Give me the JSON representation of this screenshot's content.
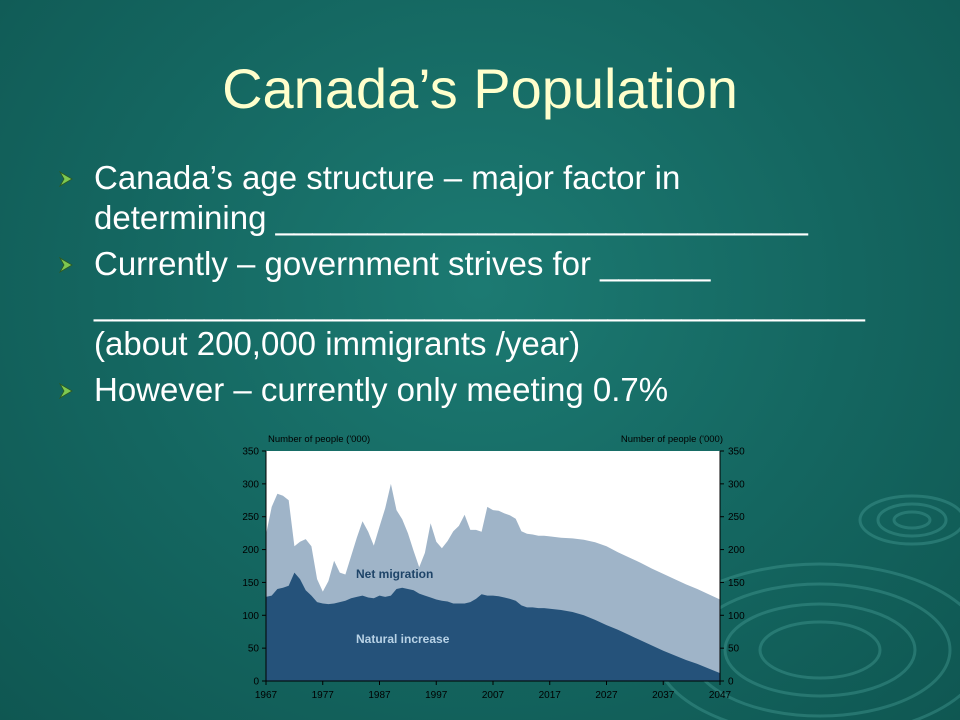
{
  "slide": {
    "title": "Canada’s Population",
    "bullets": [
      {
        "lines": [
          "Canada’s age structure – major factor in",
          "determining _____________________________"
        ]
      },
      {
        "lines": [
          "Currently – government strives for ______",
          "__________________________________________",
          "(about 200,000 immigrants /year)"
        ]
      },
      {
        "lines": [
          "However – currently only meeting 0.7%"
        ]
      }
    ]
  },
  "colors": {
    "background": "#146660",
    "title": "#ffffcc",
    "bullet_text": "#ffffff",
    "bullet_arrow": "#7ec850",
    "natural_increase": "#25527a",
    "net_migration": "#9fb4c8"
  },
  "chart_data": {
    "type": "area",
    "y_axis_label_left": "Number of people ('000)",
    "y_axis_label_right": "Number of people ('000)",
    "ylim": [
      0,
      350
    ],
    "y_ticks": [
      0,
      50,
      100,
      150,
      200,
      250,
      300,
      350
    ],
    "xlim": [
      1967,
      2047
    ],
    "x_ticks": [
      "1967",
      "1977",
      "1987",
      "1997",
      "2007",
      "2017",
      "2027",
      "2037",
      "2047"
    ],
    "stacked": true,
    "series": [
      {
        "name": "Natural increase",
        "points": [
          [
            1967,
            128
          ],
          [
            1968,
            130
          ],
          [
            1969,
            140
          ],
          [
            1970,
            142
          ],
          [
            1971,
            145
          ],
          [
            1972,
            165
          ],
          [
            1973,
            155
          ],
          [
            1974,
            138
          ],
          [
            1975,
            130
          ],
          [
            1976,
            120
          ],
          [
            1977,
            118
          ],
          [
            1978,
            117
          ],
          [
            1979,
            118
          ],
          [
            1980,
            120
          ],
          [
            1981,
            122
          ],
          [
            1982,
            126
          ],
          [
            1983,
            128
          ],
          [
            1984,
            130
          ],
          [
            1985,
            127
          ],
          [
            1986,
            126
          ],
          [
            1987,
            130
          ],
          [
            1988,
            128
          ],
          [
            1989,
            130
          ],
          [
            1990,
            140
          ],
          [
            1991,
            142
          ],
          [
            1992,
            140
          ],
          [
            1993,
            138
          ],
          [
            1994,
            133
          ],
          [
            1995,
            130
          ],
          [
            1996,
            127
          ],
          [
            1997,
            124
          ],
          [
            1998,
            122
          ],
          [
            1999,
            121
          ],
          [
            2000,
            118
          ],
          [
            2001,
            118
          ],
          [
            2002,
            118
          ],
          [
            2003,
            120
          ],
          [
            2004,
            125
          ],
          [
            2005,
            132
          ],
          [
            2006,
            130
          ],
          [
            2007,
            130
          ],
          [
            2008,
            129
          ],
          [
            2009,
            127
          ],
          [
            2010,
            125
          ],
          [
            2011,
            122
          ],
          [
            2012,
            115
          ],
          [
            2013,
            112
          ],
          [
            2014,
            112
          ],
          [
            2015,
            111
          ],
          [
            2016,
            111
          ],
          [
            2017,
            110
          ],
          [
            2019,
            108
          ],
          [
            2021,
            105
          ],
          [
            2023,
            100
          ],
          [
            2025,
            93
          ],
          [
            2027,
            85
          ],
          [
            2029,
            78
          ],
          [
            2031,
            70
          ],
          [
            2033,
            62
          ],
          [
            2035,
            54
          ],
          [
            2037,
            46
          ],
          [
            2039,
            39
          ],
          [
            2041,
            32
          ],
          [
            2043,
            26
          ],
          [
            2045,
            19
          ],
          [
            2047,
            12
          ]
        ]
      },
      {
        "name": "Net migration",
        "points": [
          [
            1967,
            95
          ],
          [
            1968,
            135
          ],
          [
            1969,
            145
          ],
          [
            1970,
            140
          ],
          [
            1971,
            130
          ],
          [
            1972,
            40
          ],
          [
            1973,
            57
          ],
          [
            1974,
            78
          ],
          [
            1975,
            75
          ],
          [
            1976,
            35
          ],
          [
            1977,
            18
          ],
          [
            1978,
            35
          ],
          [
            1979,
            65
          ],
          [
            1980,
            45
          ],
          [
            1981,
            40
          ],
          [
            1982,
            64
          ],
          [
            1983,
            90
          ],
          [
            1984,
            113
          ],
          [
            1985,
            100
          ],
          [
            1986,
            80
          ],
          [
            1987,
            105
          ],
          [
            1988,
            135
          ],
          [
            1989,
            170
          ],
          [
            1990,
            120
          ],
          [
            1991,
            104
          ],
          [
            1992,
            85
          ],
          [
            1993,
            60
          ],
          [
            1994,
            40
          ],
          [
            1995,
            65
          ],
          [
            1996,
            113
          ],
          [
            1997,
            88
          ],
          [
            1998,
            80
          ],
          [
            1999,
            92
          ],
          [
            2000,
            110
          ],
          [
            2001,
            118
          ],
          [
            2002,
            135
          ],
          [
            2003,
            110
          ],
          [
            2004,
            105
          ],
          [
            2005,
            95
          ],
          [
            2006,
            135
          ],
          [
            2007,
            130
          ],
          [
            2008,
            130
          ],
          [
            2009,
            128
          ],
          [
            2010,
            127
          ],
          [
            2011,
            125
          ],
          [
            2012,
            113
          ],
          [
            2013,
            112
          ],
          [
            2014,
            111
          ],
          [
            2015,
            110
          ],
          [
            2016,
            110
          ],
          [
            2017,
            110
          ],
          [
            2019,
            110
          ],
          [
            2021,
            112
          ],
          [
            2023,
            115
          ],
          [
            2025,
            118
          ],
          [
            2027,
            120
          ],
          [
            2029,
            118
          ],
          [
            2031,
            118
          ],
          [
            2033,
            118
          ],
          [
            2035,
            117
          ],
          [
            2037,
            117
          ],
          [
            2039,
            116
          ],
          [
            2041,
            115
          ],
          [
            2043,
            114
          ],
          [
            2045,
            113
          ],
          [
            2047,
            112
          ]
        ]
      }
    ],
    "series_labels": [
      "Net migration",
      "Natural increase"
    ]
  }
}
